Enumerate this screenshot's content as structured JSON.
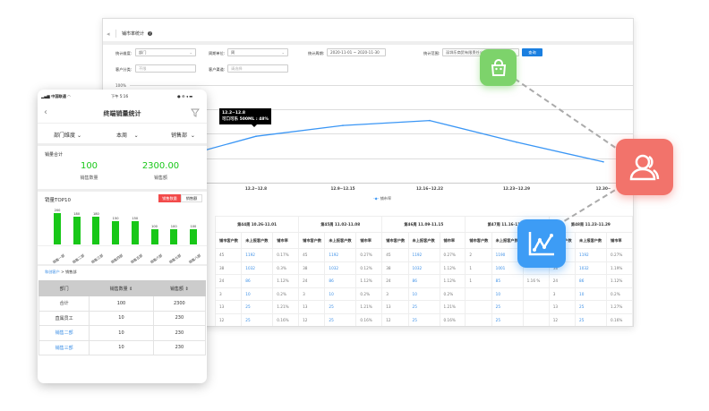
{
  "desktop": {
    "title": "铺市率统计",
    "filters": {
      "dimension_label": "统计维度:",
      "dimension_value": "部门",
      "period_unit_label": "周期单位:",
      "period_unit_value": "周",
      "period_label": "统计周期:",
      "period_value": "2020-11-01 ~ 2020-11-30",
      "scope_label": "统计范围:",
      "scope_value": "深圳乐商贸有限责任公司",
      "query_button": "查询",
      "customer_class_label": "客户分类:",
      "customer_class_placeholder": "不限",
      "customer_channel_label": "客户渠道:",
      "customer_channel_placeholder": "请选择"
    },
    "chart_data": {
      "type": "line",
      "categories": [
        "",
        "12.2~12.8",
        "12.9~12.15",
        "12.16~12.22",
        "12.23~12.29",
        "12.30~"
      ],
      "series": [
        {
          "name": "铺市率",
          "values": [
            24,
            48,
            59,
            64,
            42,
            22
          ],
          "color": "#3a96f5"
        }
      ],
      "ylim": [
        0,
        100
      ],
      "ytick_label": "100%",
      "grid": true,
      "legend": "bottom",
      "tooltip": {
        "title": "12.2~12.8",
        "text": "可口可乐 500ML : 48%"
      }
    },
    "table": {
      "sub_headers": [
        "铺市客户数",
        "未上报客户数",
        "铺市率"
      ],
      "weeks": [
        {
          "label": "第44周 10.26-11.01",
          "rows": [
            [
              "45",
              "1192",
              "0.17%"
            ],
            [
              "38",
              "1032",
              "0.3%"
            ],
            [
              "24",
              "86",
              "1.12%"
            ],
            [
              "3",
              "10",
              "0.2%"
            ],
            [
              "13",
              "25",
              "1.21%"
            ],
            [
              "12",
              "25",
              "0.16%"
            ]
          ]
        },
        {
          "label": "第45周 11.02-11.08",
          "rows": [
            [
              "45",
              "1192",
              "0.27%"
            ],
            [
              "38",
              "1032",
              "0.12%"
            ],
            [
              "24",
              "86",
              "1.12%"
            ],
            [
              "3",
              "10",
              "0.2%"
            ],
            [
              "13",
              "25",
              "1.21%"
            ],
            [
              "12",
              "25",
              "0.16%"
            ]
          ]
        },
        {
          "label": "第46周 11.09-11.15",
          "rows": [
            [
              "45",
              "1192",
              "0.27%"
            ],
            [
              "38",
              "1032",
              "1.12%"
            ],
            [
              "24",
              "86",
              "1.12%"
            ],
            [
              "3",
              "10",
              "0.2%"
            ],
            [
              "13",
              "25",
              "1.21%"
            ],
            [
              "12",
              "25",
              "0.16%"
            ]
          ]
        },
        {
          "label": "第47周 11.16-11.22",
          "rows": [
            [
              "2",
              "1190",
              ""
            ],
            [
              "1",
              "1001",
              ""
            ],
            [
              "1",
              "85",
              "1.16 %"
            ],
            [
              "",
              "10",
              ""
            ],
            [
              "",
              "25",
              ""
            ],
            [
              "",
              "25",
              ""
            ]
          ]
        },
        {
          "label": "第48周 11.23-11.29",
          "rows": [
            [
              "45",
              "1192",
              "0.27%"
            ],
            [
              "38",
              "1032",
              "1.19%"
            ],
            [
              "24",
              "86",
              "1.12%"
            ],
            [
              "3",
              "10",
              "0.2%"
            ],
            [
              "13",
              "25",
              "1.27%"
            ],
            [
              "12",
              "25",
              "0.16%"
            ]
          ]
        }
      ]
    }
  },
  "mobile": {
    "carrier": "中国联通",
    "time": "下午 5:16",
    "title": "终端销量统计",
    "filters": [
      "部门维度",
      "本周",
      "销售部"
    ],
    "summary": {
      "heading": "销量合计",
      "qty_value": "100",
      "qty_label": "销售数量",
      "amount_value": "2300.00",
      "amount_label": "销售额"
    },
    "top10": {
      "heading": "销量TOP10",
      "toggle_qty": "销售数量",
      "toggle_amount": "销售额"
    },
    "bar_chart": {
      "type": "bar",
      "categories": [
        "销售一部",
        "销售二部",
        "销售三部",
        "销售四部",
        "销售五部",
        "销售六部",
        "销售七部",
        "销售八部"
      ],
      "values": [
        200,
        180,
        180,
        150,
        150,
        100,
        100,
        100
      ],
      "color": "#18c718"
    },
    "breadcrumb": {
      "root": "和创客户",
      "sep": ">",
      "current": "销售部"
    },
    "table": {
      "headers": [
        "部门",
        "销售数量 ⇕",
        "销售额 ⇕"
      ],
      "rows": [
        [
          "合计",
          "100",
          "2300"
        ],
        [
          "直属员工",
          "10",
          "230"
        ],
        [
          "销售二部",
          "10",
          "230"
        ],
        [
          "销售三部",
          "10",
          "230"
        ]
      ]
    }
  },
  "colors": {
    "accent": "#3a8ee6",
    "green_tile": "#7dd36b",
    "red_tile": "#f2736b",
    "blue_tile": "#3d9cf5",
    "toggle_active": "#f24a4a"
  }
}
